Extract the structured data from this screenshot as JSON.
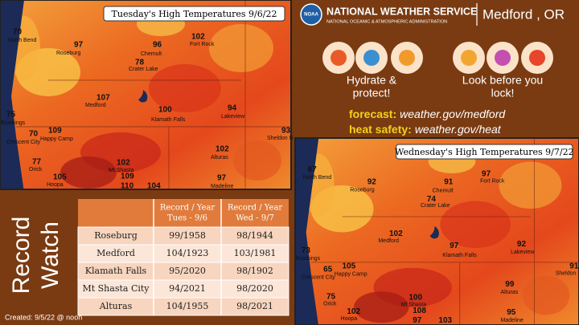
{
  "header": {
    "agency": "NATIONAL WEATHER SERVICE",
    "parent": "NATIONAL OCEANIC & ATMOSPHERIC ADMINISTRATION",
    "office": "Medford , OR",
    "logo": "NOAA"
  },
  "tips": [
    {
      "lines": [
        "Hydrate &",
        "protect!"
      ]
    },
    {
      "lines": [
        "Look before you",
        "lock!"
      ]
    }
  ],
  "links": [
    {
      "label": "forecast:",
      "url": "weather.gov/medford"
    },
    {
      "label": "heat safety:",
      "url": "weather.gov/heat"
    }
  ],
  "maps": [
    {
      "title": "Tuesday's High Temperatures 9/6/22",
      "stations": [
        {
          "name": "North Bend",
          "value": "70"
        },
        {
          "name": "Roseburg",
          "value": "97"
        },
        {
          "name": "Chemult",
          "value": "96"
        },
        {
          "name": "Fort Rock",
          "value": "102"
        },
        {
          "name": "Crater Lake",
          "value": "78"
        },
        {
          "name": "Medford",
          "value": "107"
        },
        {
          "name": "Klamath Falls",
          "value": "100"
        },
        {
          "name": "Lakeview",
          "value": "94"
        },
        {
          "name": "Brookings",
          "value": "75"
        },
        {
          "name": "Crescent City",
          "value": "70"
        },
        {
          "name": "Happy Camp",
          "value": "109"
        },
        {
          "name": "Sheldon N",
          "value": "93"
        },
        {
          "name": "Orick",
          "value": "77"
        },
        {
          "name": "Alturas",
          "value": "102"
        },
        {
          "name": "Hoopa",
          "value": "105"
        },
        {
          "name": "Mt Shasta",
          "value": "102"
        },
        {
          "value": "109"
        },
        {
          "value": "110"
        },
        {
          "value": "104"
        },
        {
          "name": "Madeline",
          "value": "97"
        }
      ]
    },
    {
      "title": "Wednesday's High Temperatures 9/7/22",
      "stations": [
        {
          "name": "North Bend",
          "value": "67"
        },
        {
          "name": "Roseburg",
          "value": "92"
        },
        {
          "name": "Chemult",
          "value": "91"
        },
        {
          "name": "Fort Rock",
          "value": "97"
        },
        {
          "name": "Crater Lake",
          "value": "74"
        },
        {
          "name": "Medford",
          "value": "102"
        },
        {
          "name": "Klamath Falls",
          "value": "97"
        },
        {
          "name": "Lakeview",
          "value": "92"
        },
        {
          "name": "Brookings",
          "value": "73"
        },
        {
          "name": "Crescent City",
          "value": "65"
        },
        {
          "name": "Happy Camp",
          "value": "105"
        },
        {
          "name": "Sheldon N",
          "value": "91"
        },
        {
          "name": "Orick",
          "value": "75"
        },
        {
          "name": "Alturas",
          "value": "99"
        },
        {
          "name": "Hoopa",
          "value": "102"
        },
        {
          "name": "Mt Shasta",
          "value": "100"
        },
        {
          "value": "108"
        },
        {
          "value": "97"
        },
        {
          "value": "103"
        },
        {
          "name": "Madeline",
          "value": "95"
        }
      ]
    }
  ],
  "side_title": [
    "Record",
    "Watch"
  ],
  "created": "Created: 9/5/22 @ noon",
  "table": {
    "header": [
      "Record / Year Tues - 9/6",
      "Record / Year Wed - 9/7"
    ],
    "header_lines": [
      [
        "Record / Year",
        "Tues - 9/6"
      ],
      [
        "Record / Year",
        "Wed - 9/7"
      ]
    ],
    "rows": [
      [
        "Roseburg",
        "99/1958",
        "98/1944"
      ],
      [
        "Medford",
        "104/1923",
        "103/1981"
      ],
      [
        "Klamath Falls",
        "95/2020",
        "98/1902"
      ],
      [
        "Mt Shasta City",
        "94/2021",
        "98/2020"
      ],
      [
        "Alturas",
        "104/1955",
        "98/2021"
      ]
    ]
  }
}
